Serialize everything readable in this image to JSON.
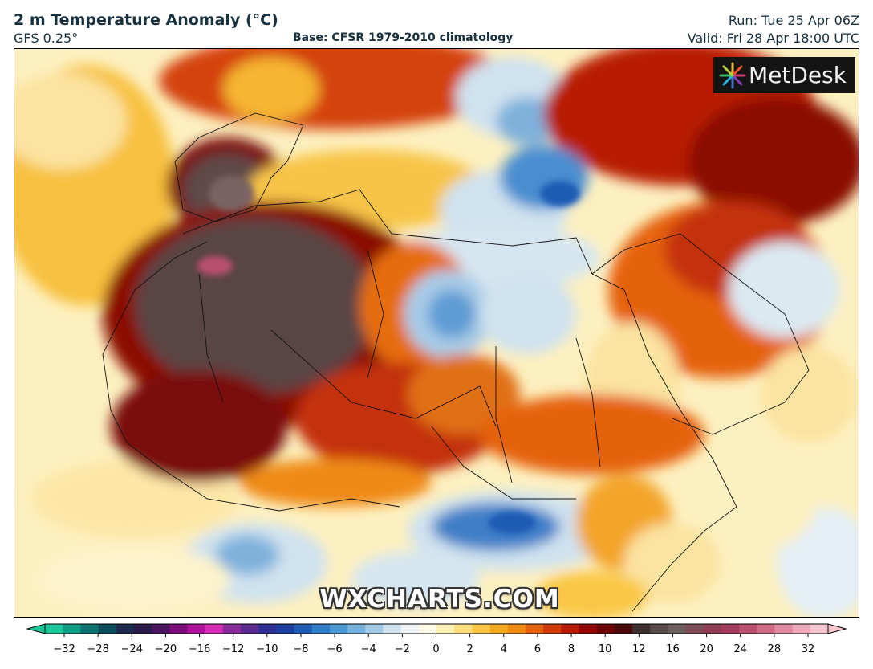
{
  "header": {
    "title": "2 m Temperature Anomaly (°C)",
    "model": "GFS 0.25°",
    "base": "Base: CFSR 1979-2010 climatology",
    "run": "Run: Tue 25 Apr 06Z",
    "valid": "Valid: Fri 28 Apr 18:00 UTC"
  },
  "logo": {
    "text": "MetDesk",
    "icon": "metdesk-starburst-icon"
  },
  "watermark": "WXCHARTS.COM",
  "colorbar": {
    "ticks": [
      "−32",
      "−28",
      "−24",
      "−20",
      "−16",
      "−12",
      "−10",
      "−8",
      "−6",
      "−4",
      "−2",
      "0",
      "2",
      "4",
      "6",
      "8",
      "10",
      "12",
      "16",
      "20",
      "24",
      "28",
      "32"
    ],
    "colors": [
      "#19c79a",
      "#0f9e86",
      "#0c7372",
      "#0c4d5d",
      "#1b2a4e",
      "#2a1a4a",
      "#4a145e",
      "#7c0d7a",
      "#b0119a",
      "#d62cb5",
      "#8a2b9a",
      "#5b2a8e",
      "#2d2f95",
      "#1d3f9e",
      "#1e5cb4",
      "#2f7cc7",
      "#4b97d2",
      "#74b1dc",
      "#a2cae6",
      "#cfe2ef",
      "#eef4f7",
      "#fffbe6",
      "#fff0b3",
      "#fddf80",
      "#f9c744",
      "#f4aa20",
      "#ef8a12",
      "#e5620c",
      "#d13b07",
      "#b81a04",
      "#930703",
      "#6b0302",
      "#4a0a0a",
      "#3f2f2f",
      "#5a4b4b",
      "#6e5e5e",
      "#7d4c57",
      "#8f3d55",
      "#a33b5d",
      "#b9506f",
      "#cf6a85",
      "#df8aa0",
      "#eeaabb",
      "#f6c6d1"
    ]
  },
  "map_colors": {
    "ocean": "#fdf6d8",
    "extreme": "#5a4444",
    "very_hot": "#7a0d08",
    "hot": "#c83606",
    "warm": "#ee8a12",
    "mild": "#f8c440",
    "cool": "#cfe2ef",
    "cold": "#3f7fc8",
    "border": "#111111"
  }
}
